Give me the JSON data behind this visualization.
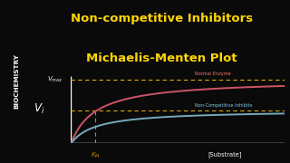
{
  "title_line1": "Non-competitive Inhibitors",
  "title_line2": "Michaelis-Menten Plot",
  "title_color": "#FFD700",
  "bg_color": "#0a0a0a",
  "sidebar_color": "#2196F3",
  "sidebar_text": "BIOCHEMISTRY",
  "vi_color": "#FFFFFF",
  "vmax_color": "#FFFFFF",
  "km_color": "#CC8800",
  "substrate_label": "[Substrate]",
  "substrate_color": "#FFFFFF",
  "normal_enzyme_label": "Normal Enzyme",
  "normal_enzyme_color": "#FF7777",
  "inhibitor_label": "Non-Competitive Inhibito",
  "inhibitor_color": "#87CEEB",
  "normal_line_color": "#CC5566",
  "inhibitor_line_color": "#77AABB",
  "dashed_color": "#DDAA00",
  "vmax_value": 1.0,
  "inhibitor_vmax": 0.52,
  "km_value": 0.8,
  "x_max": 7.0,
  "axes_color": "#FFFFFF",
  "km_line_color": "#CC8800"
}
